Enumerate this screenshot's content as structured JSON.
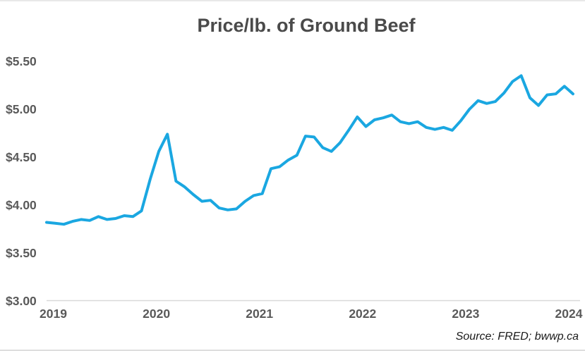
{
  "chart_data": {
    "type": "line",
    "title": "Price/lb. of Ground Beef",
    "source_note": "Source: FRED; bwwp.ca",
    "x_frequency": "monthly",
    "x_range": "Jan 2019 - Feb 2024",
    "x_ticks": [
      "2019",
      "2020",
      "2021",
      "2022",
      "2023",
      "2024"
    ],
    "y_ticks": [
      {
        "label": "$5.50",
        "value": 5.5
      },
      {
        "label": "$5.00",
        "value": 5.0
      },
      {
        "label": "$4.50",
        "value": 4.5
      },
      {
        "label": "$4.00",
        "value": 4.0
      },
      {
        "label": "$3.50",
        "value": 3.5
      },
      {
        "label": "$3.00",
        "value": 3.0
      }
    ],
    "ylim": [
      3.0,
      5.5
    ],
    "grid": "none",
    "legend": "none",
    "line_color": "#1aa7e1",
    "series": [
      {
        "name": "Ground beef price per pound (USD)",
        "values": [
          3.82,
          3.81,
          3.8,
          3.83,
          3.85,
          3.84,
          3.88,
          3.85,
          3.86,
          3.89,
          3.88,
          3.94,
          4.27,
          4.56,
          4.74,
          4.25,
          4.19,
          4.11,
          4.04,
          4.05,
          3.97,
          3.95,
          3.96,
          4.04,
          4.1,
          4.12,
          4.38,
          4.4,
          4.47,
          4.52,
          4.72,
          4.71,
          4.6,
          4.56,
          4.65,
          4.78,
          4.92,
          4.82,
          4.89,
          4.91,
          4.94,
          4.87,
          4.85,
          4.87,
          4.81,
          4.79,
          4.81,
          4.78,
          4.88,
          5.0,
          5.09,
          5.06,
          5.08,
          5.17,
          5.29,
          5.35,
          5.12,
          5.04,
          5.15,
          5.16,
          5.24,
          5.16
        ]
      }
    ]
  }
}
